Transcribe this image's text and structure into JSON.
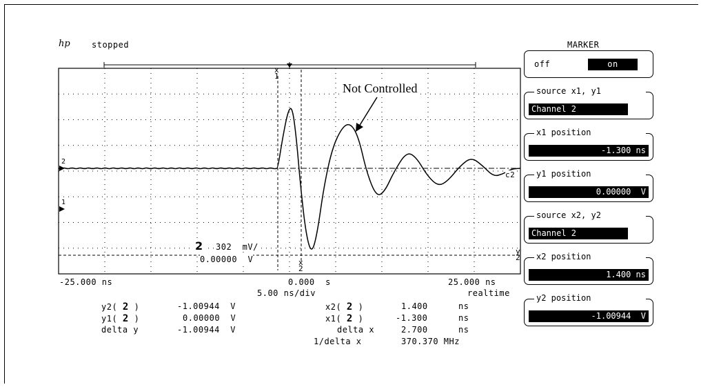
{
  "header": {
    "logo_text": "hp",
    "status": "stopped"
  },
  "annotation": "Not Controlled",
  "channel": {
    "number": "2",
    "scale": "302  mV/",
    "offset": "0.00000  V"
  },
  "axis": {
    "left": "-25.000 ns",
    "center": "0.000  s",
    "right": "25.000 ns",
    "timebase": "5.00 ns/div",
    "mode": "realtime"
  },
  "markers_panel": {
    "title": "MARKER",
    "off_label": "off",
    "on_label": "on",
    "source1_label": "source x1, y1",
    "source1_value": "Channel 2",
    "x1_label": "x1 position",
    "x1_value": "-1.300 ns",
    "y1_label": "y1 position",
    "y1_value": "0.00000  V",
    "source2_label": "source x2, y2",
    "source2_value": "Channel 2",
    "x2_label": "x2 position",
    "x2_value": "1.400 ns",
    "y2_label": "y2 position",
    "y2_value": "-1.00944  V"
  },
  "readouts": {
    "y2_label": "y2(",
    "y2_ch": "2",
    "y2_value": "-1.00944  V",
    "y1_label": "y1(",
    "y1_ch": "2",
    "y1_value": "0.00000  V",
    "dy_label": "delta y",
    "dy_value": "-1.00944  V",
    "x2_label": "x2(",
    "x2_ch": "2",
    "x2_value": "1.400",
    "x2_unit": "ns",
    "x1_label": "x1(",
    "x1_ch": "2",
    "x1_value": "-1.300",
    "x1_unit": "ns",
    "dx_label": "delta x",
    "dx_value": "2.700",
    "dx_unit": "ns",
    "inv_label": "1/delta x",
    "inv_value": "370.370 MHz",
    "paren_close": ")"
  },
  "marker_tags": {
    "x1": "x\n1",
    "x2": "x\n2",
    "y2": "y\n2",
    "ch2": "2",
    "ch1": "1",
    "c2": "c2"
  }
}
